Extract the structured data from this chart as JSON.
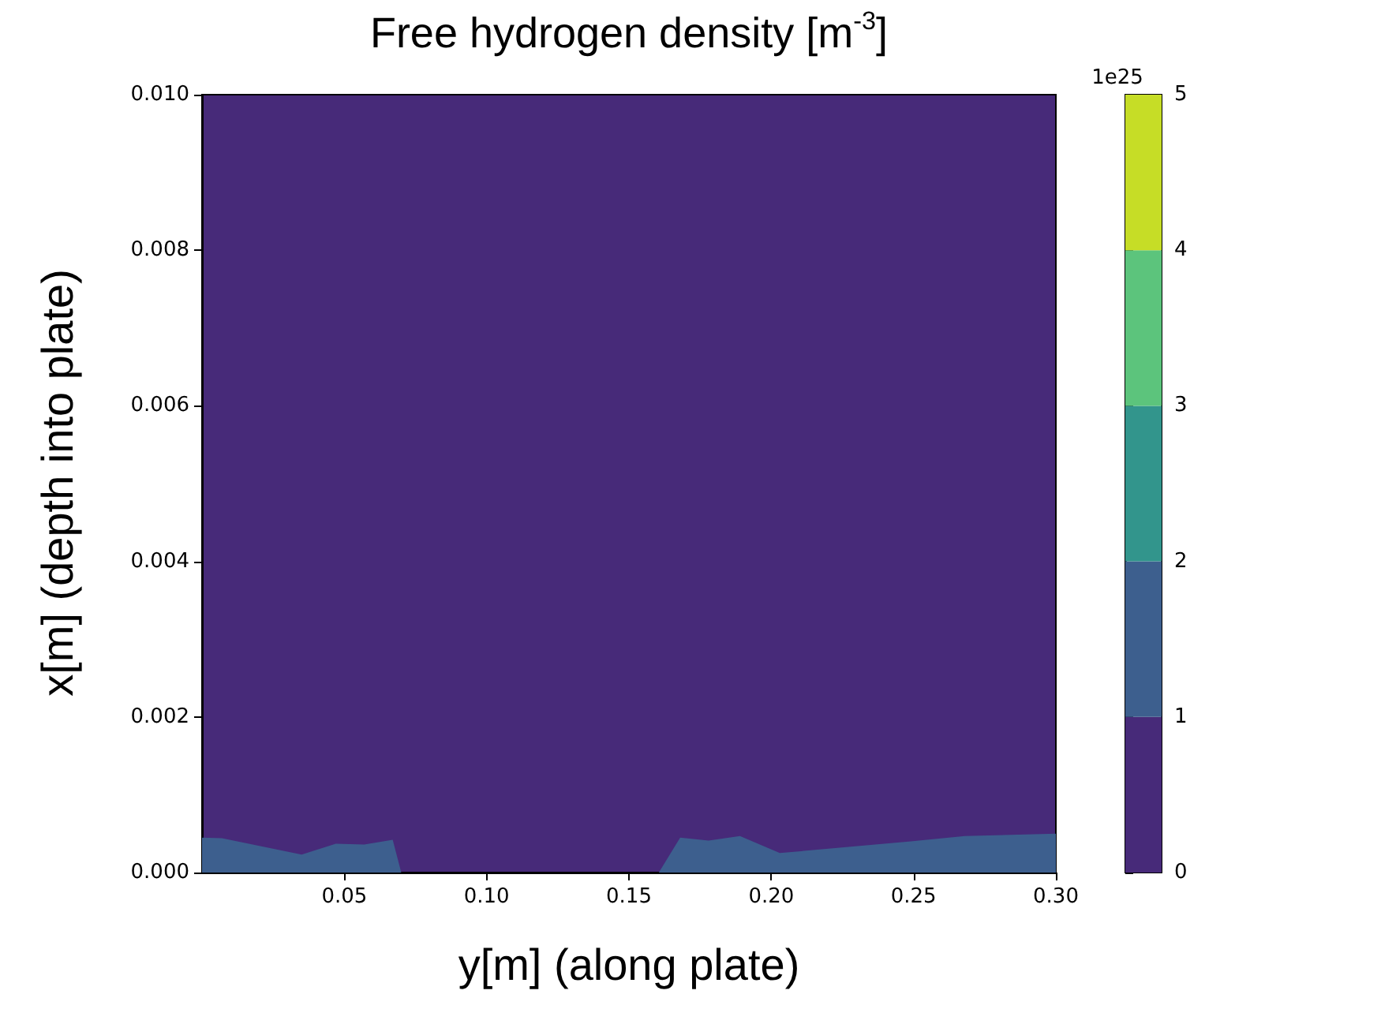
{
  "chart_data": {
    "type": "area",
    "title": "Free hydrogen density [m$^{-3}$]",
    "xlabel": "y[m] (along plate)",
    "ylabel": "x[m] (depth into plate)",
    "clabel": "1e25",
    "series": [
      {
        "color": "#3d5f8e",
        "x": [
          0,
          0.007,
          0.035,
          0.047,
          0.057,
          0.067,
          0.07,
          0.1605,
          0.168,
          0.178,
          0.189,
          0.203,
          0.249,
          0.268,
          0.3
        ],
        "values": [
          0.00045,
          0.00044,
          0.00023,
          0.00037,
          0.00036,
          0.00042,
          0,
          0,
          0.00045,
          0.00041,
          0.00047,
          0.00025,
          0.0004,
          0.00047,
          0.0005
        ]
      }
    ],
    "xlim": [
      0,
      0.3
    ],
    "xticks": [
      0.05,
      {
        "value": 0.1,
        "label": "0.10"
      },
      0.15,
      {
        "value": 0.2,
        "label": "0.20"
      },
      0.25,
      {
        "value": 0.3,
        "label": "0.30"
      }
    ],
    "ylim": [
      0,
      0.01
    ],
    "yticks": [
      {
        "value": 0,
        "label": "0.000"
      },
      {
        "value": 0.002,
        "label": "0.002"
      },
      {
        "value": 0.004,
        "label": "0.004"
      },
      {
        "value": 0.006,
        "label": "0.006"
      },
      {
        "value": 0.008,
        "label": "0.008"
      },
      {
        "value": 0.01,
        "label": "0.010"
      }
    ],
    "clim": [
      0,
      5
    ],
    "cticks": [
      0,
      1,
      2,
      3,
      4,
      5
    ],
    "colors": [
      "#472a79",
      "#3d5f8e",
      "#32958c",
      "#5cc47c",
      "#c6dd26"
    ],
    "grid": false
  }
}
